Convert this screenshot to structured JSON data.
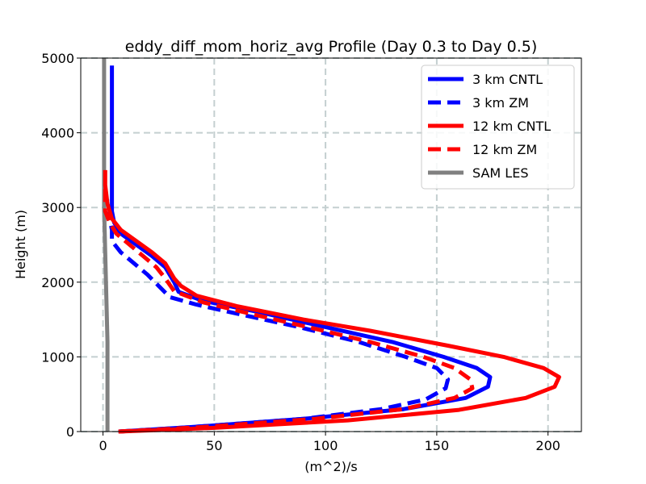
{
  "chart_data": {
    "type": "line",
    "title": "eddy_diff_mom_horiz_avg Profile (Day 0.3 to Day 0.5)",
    "xlabel": "(m^2)/s",
    "ylabel": "Height (m)",
    "xlim": [
      -10,
      215
    ],
    "ylim": [
      0,
      5000
    ],
    "xticks": [
      0,
      50,
      100,
      150,
      200
    ],
    "yticks": [
      0,
      1000,
      2000,
      3000,
      4000,
      5000
    ],
    "grid": true,
    "legend_position": "top-right",
    "series": [
      {
        "name": "3 km CNTL",
        "color": "#0000ff",
        "dash": "solid",
        "points": [
          [
            7,
            0
          ],
          [
            40,
            60
          ],
          [
            90,
            170
          ],
          [
            135,
            300
          ],
          [
            163,
            450
          ],
          [
            173,
            600
          ],
          [
            174,
            730
          ],
          [
            168,
            850
          ],
          [
            153,
            1000
          ],
          [
            130,
            1200
          ],
          [
            100,
            1400
          ],
          [
            70,
            1600
          ],
          [
            45,
            1750
          ],
          [
            34,
            1870
          ],
          [
            32,
            2000
          ],
          [
            28,
            2200
          ],
          [
            22,
            2350
          ],
          [
            15,
            2500
          ],
          [
            8,
            2650
          ],
          [
            5,
            2800
          ],
          [
            4,
            2950
          ],
          [
            4,
            3200
          ],
          [
            4,
            3600
          ],
          [
            4,
            4000
          ],
          [
            4,
            4500
          ],
          [
            4,
            4900
          ]
        ]
      },
      {
        "name": "3 km ZM",
        "color": "#0000ff",
        "dash": "dashed",
        "points": [
          [
            7,
            0
          ],
          [
            40,
            60
          ],
          [
            90,
            170
          ],
          [
            125,
            300
          ],
          [
            145,
            430
          ],
          [
            154,
            580
          ],
          [
            155,
            700
          ],
          [
            150,
            850
          ],
          [
            136,
            1000
          ],
          [
            115,
            1200
          ],
          [
            88,
            1400
          ],
          [
            60,
            1580
          ],
          [
            42,
            1700
          ],
          [
            30,
            1800
          ],
          [
            25,
            1950
          ],
          [
            20,
            2100
          ],
          [
            14,
            2250
          ],
          [
            8,
            2400
          ],
          [
            4,
            2550
          ],
          [
            4,
            2700
          ],
          [
            3,
            2850
          ],
          [
            3,
            3100
          ]
        ]
      },
      {
        "name": "12 km CNTL",
        "color": "#ff0000",
        "dash": "solid",
        "points": [
          [
            7,
            0
          ],
          [
            50,
            50
          ],
          [
            110,
            150
          ],
          [
            160,
            290
          ],
          [
            190,
            450
          ],
          [
            203,
            600
          ],
          [
            205,
            730
          ],
          [
            198,
            850
          ],
          [
            180,
            1000
          ],
          [
            155,
            1150
          ],
          [
            120,
            1350
          ],
          [
            90,
            1500
          ],
          [
            60,
            1680
          ],
          [
            42,
            1820
          ],
          [
            35,
            1950
          ],
          [
            32,
            2050
          ],
          [
            28,
            2250
          ],
          [
            22,
            2400
          ],
          [
            15,
            2550
          ],
          [
            8,
            2700
          ],
          [
            4,
            2850
          ],
          [
            2,
            3050
          ],
          [
            1,
            3300
          ],
          [
            1,
            3500
          ]
        ]
      },
      {
        "name": "12 km ZM",
        "color": "#ff0000",
        "dash": "dashed",
        "points": [
          [
            7,
            0
          ],
          [
            45,
            60
          ],
          [
            95,
            170
          ],
          [
            135,
            300
          ],
          [
            158,
            450
          ],
          [
            166,
            580
          ],
          [
            165,
            700
          ],
          [
            158,
            850
          ],
          [
            144,
            1000
          ],
          [
            120,
            1200
          ],
          [
            92,
            1400
          ],
          [
            66,
            1580
          ],
          [
            45,
            1730
          ],
          [
            32,
            1880
          ],
          [
            28,
            2050
          ],
          [
            24,
            2200
          ],
          [
            18,
            2350
          ],
          [
            12,
            2500
          ],
          [
            6,
            2650
          ],
          [
            3,
            2800
          ],
          [
            1,
            2950
          ],
          [
            1,
            3100
          ],
          [
            1,
            3300
          ]
        ]
      },
      {
        "name": "SAM LES",
        "color": "#808080",
        "dash": "solid",
        "points": [
          [
            2,
            0
          ],
          [
            2,
            150
          ],
          [
            2,
            400
          ],
          [
            2,
            800
          ],
          [
            2,
            1200
          ],
          [
            1.5,
            1800
          ],
          [
            1,
            2400
          ],
          [
            0.5,
            3000
          ],
          [
            0.5,
            3600
          ],
          [
            0.5,
            4200
          ],
          [
            0.5,
            4700
          ],
          [
            0.5,
            5000
          ]
        ]
      }
    ]
  }
}
